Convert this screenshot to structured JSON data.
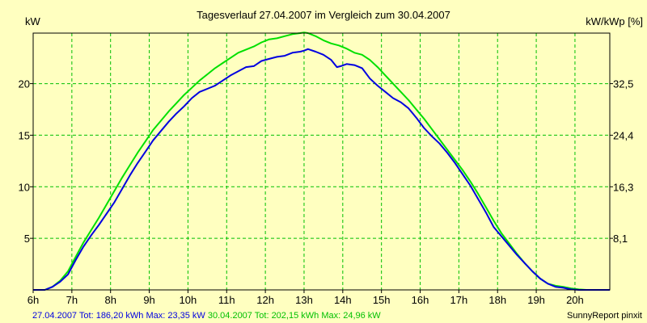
{
  "chart_data": {
    "type": "line",
    "title": "Tagesverlauf 27.04.2007 im Vergleich zum 30.04.2007",
    "ylabel_left": "kW",
    "ylabel_right": "kW/kWp [%]",
    "x_ticks": [
      "6h",
      "7h",
      "8h",
      "9h",
      "10h",
      "11h",
      "12h",
      "13h",
      "14h",
      "15h",
      "16h",
      "17h",
      "18h",
      "19h",
      "20h"
    ],
    "y_ticks_left": [
      "5",
      "10",
      "15",
      "20"
    ],
    "y_ticks_right": [
      "8,1",
      "16,3",
      "24,4",
      "32,5"
    ],
    "xlim": [
      6,
      20.9
    ],
    "ylim": [
      0,
      24.9
    ],
    "grid": true,
    "series": [
      {
        "color": "#0000e0",
        "legend": "27.04.2007 Tot: 186,20 kWh Max: 23,35 kW",
        "points": [
          [
            6.0,
            0
          ],
          [
            6.3,
            0
          ],
          [
            6.5,
            0.3
          ],
          [
            6.7,
            0.8
          ],
          [
            6.9,
            1.5
          ],
          [
            7.1,
            2.9
          ],
          [
            7.3,
            4.2
          ],
          [
            7.5,
            5.3
          ],
          [
            7.7,
            6.3
          ],
          [
            7.9,
            7.4
          ],
          [
            8.1,
            8.5
          ],
          [
            8.3,
            9.8
          ],
          [
            8.5,
            11.1
          ],
          [
            8.7,
            12.3
          ],
          [
            8.9,
            13.4
          ],
          [
            9.1,
            14.5
          ],
          [
            9.3,
            15.4
          ],
          [
            9.5,
            16.3
          ],
          [
            9.7,
            17.1
          ],
          [
            9.9,
            17.8
          ],
          [
            10.1,
            18.6
          ],
          [
            10.3,
            19.2
          ],
          [
            10.5,
            19.5
          ],
          [
            10.7,
            19.8
          ],
          [
            10.9,
            20.3
          ],
          [
            11.1,
            20.8
          ],
          [
            11.3,
            21.2
          ],
          [
            11.5,
            21.6
          ],
          [
            11.7,
            21.7
          ],
          [
            11.9,
            22.2
          ],
          [
            12.1,
            22.4
          ],
          [
            12.3,
            22.6
          ],
          [
            12.5,
            22.7
          ],
          [
            12.7,
            23.0
          ],
          [
            12.9,
            23.1
          ],
          [
            13.0,
            23.2
          ],
          [
            13.1,
            23.35
          ],
          [
            13.3,
            23.1
          ],
          [
            13.5,
            22.8
          ],
          [
            13.7,
            22.3
          ],
          [
            13.85,
            21.6
          ],
          [
            13.95,
            21.7
          ],
          [
            14.1,
            21.9
          ],
          [
            14.3,
            21.8
          ],
          [
            14.5,
            21.5
          ],
          [
            14.7,
            20.5
          ],
          [
            14.9,
            19.8
          ],
          [
            15.1,
            19.2
          ],
          [
            15.3,
            18.6
          ],
          [
            15.5,
            18.2
          ],
          [
            15.7,
            17.6
          ],
          [
            15.9,
            16.7
          ],
          [
            16.1,
            15.7
          ],
          [
            16.3,
            14.9
          ],
          [
            16.5,
            14.2
          ],
          [
            16.7,
            13.3
          ],
          [
            16.9,
            12.3
          ],
          [
            17.1,
            11.2
          ],
          [
            17.3,
            10.1
          ],
          [
            17.5,
            8.8
          ],
          [
            17.7,
            7.5
          ],
          [
            17.9,
            6.1
          ],
          [
            18.1,
            5.2
          ],
          [
            18.3,
            4.3
          ],
          [
            18.5,
            3.4
          ],
          [
            18.7,
            2.6
          ],
          [
            18.9,
            1.8
          ],
          [
            19.1,
            1.1
          ],
          [
            19.3,
            0.6
          ],
          [
            19.5,
            0.3
          ],
          [
            19.7,
            0.2
          ],
          [
            19.9,
            0.05
          ],
          [
            20.1,
            0
          ],
          [
            20.9,
            0
          ]
        ]
      },
      {
        "color": "#00e000",
        "legend": "30.04.2007 Tot: 202,15 kWh Max: 24,96 kW",
        "points": [
          [
            6.0,
            0
          ],
          [
            6.3,
            0
          ],
          [
            6.5,
            0.3
          ],
          [
            6.7,
            0.9
          ],
          [
            6.9,
            1.8
          ],
          [
            7.1,
            3.2
          ],
          [
            7.3,
            4.6
          ],
          [
            7.5,
            5.8
          ],
          [
            7.7,
            7.0
          ],
          [
            7.9,
            8.3
          ],
          [
            8.1,
            9.6
          ],
          [
            8.3,
            10.9
          ],
          [
            8.5,
            12.1
          ],
          [
            8.7,
            13.3
          ],
          [
            8.9,
            14.4
          ],
          [
            9.1,
            15.5
          ],
          [
            9.3,
            16.4
          ],
          [
            9.5,
            17.3
          ],
          [
            9.7,
            18.1
          ],
          [
            9.9,
            18.9
          ],
          [
            10.1,
            19.6
          ],
          [
            10.3,
            20.3
          ],
          [
            10.5,
            20.9
          ],
          [
            10.7,
            21.5
          ],
          [
            10.9,
            22.0
          ],
          [
            11.1,
            22.5
          ],
          [
            11.3,
            23.0
          ],
          [
            11.5,
            23.3
          ],
          [
            11.7,
            23.6
          ],
          [
            11.9,
            24.0
          ],
          [
            12.1,
            24.3
          ],
          [
            12.3,
            24.4
          ],
          [
            12.5,
            24.6
          ],
          [
            12.7,
            24.8
          ],
          [
            12.9,
            24.9
          ],
          [
            13.0,
            24.96
          ],
          [
            13.1,
            24.9
          ],
          [
            13.3,
            24.6
          ],
          [
            13.5,
            24.2
          ],
          [
            13.7,
            23.9
          ],
          [
            13.9,
            23.7
          ],
          [
            14.1,
            23.4
          ],
          [
            14.3,
            23.0
          ],
          [
            14.5,
            22.8
          ],
          [
            14.7,
            22.3
          ],
          [
            14.9,
            21.6
          ],
          [
            15.1,
            20.8
          ],
          [
            15.3,
            20.0
          ],
          [
            15.5,
            19.2
          ],
          [
            15.7,
            18.4
          ],
          [
            15.9,
            17.5
          ],
          [
            16.1,
            16.6
          ],
          [
            16.3,
            15.6
          ],
          [
            16.5,
            14.6
          ],
          [
            16.7,
            13.6
          ],
          [
            16.9,
            12.6
          ],
          [
            17.1,
            11.6
          ],
          [
            17.3,
            10.5
          ],
          [
            17.5,
            9.3
          ],
          [
            17.7,
            8.0
          ],
          [
            17.9,
            6.7
          ],
          [
            18.1,
            5.5
          ],
          [
            18.3,
            4.5
          ],
          [
            18.5,
            3.5
          ],
          [
            18.7,
            2.6
          ],
          [
            18.9,
            1.8
          ],
          [
            19.1,
            1.1
          ],
          [
            19.3,
            0.6
          ],
          [
            19.5,
            0.4
          ],
          [
            19.7,
            0.3
          ],
          [
            19.9,
            0.15
          ],
          [
            20.1,
            0.05
          ],
          [
            20.3,
            0
          ],
          [
            20.9,
            0
          ]
        ]
      }
    ]
  },
  "footer": {
    "credit": "SunnyReport pinxit"
  }
}
